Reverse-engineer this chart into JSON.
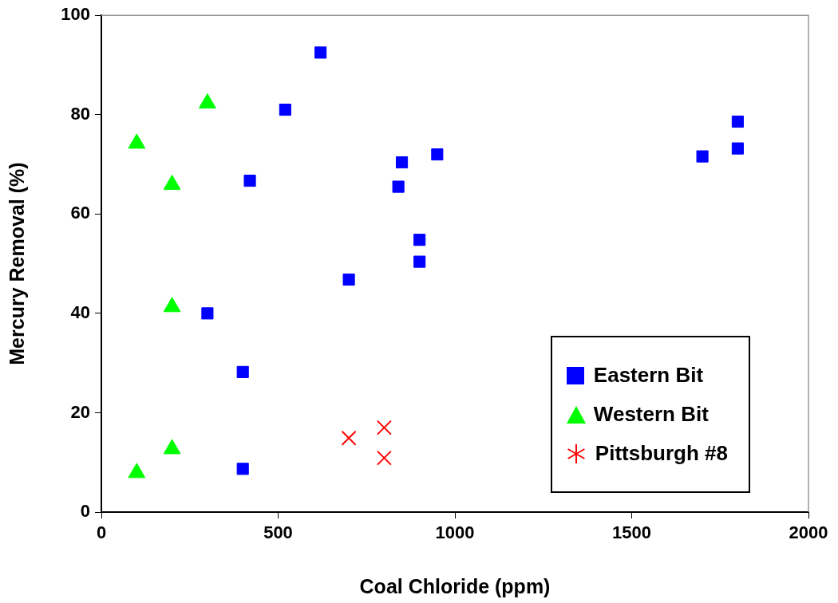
{
  "chart_data": {
    "type": "scatter",
    "xlabel": "Coal Chloride (ppm)",
    "ylabel": "Mercury Removal (%)",
    "xlim": [
      0,
      2000
    ],
    "xticks": [
      0,
      500,
      1000,
      1500,
      2000
    ],
    "ylim": [
      0,
      100
    ],
    "yticks": [
      0,
      20,
      40,
      60,
      80,
      100
    ],
    "grid": false,
    "legend": "bottom right",
    "series": [
      {
        "name": "Eastern Bit",
        "color": "#0000ff",
        "marker": "square",
        "x": [
          620,
          520,
          420,
          850,
          840,
          950,
          900,
          900,
          700,
          300,
          400,
          400,
          1700,
          1800,
          1800
        ],
        "values": [
          92.5,
          81,
          66.7,
          70.4,
          65.5,
          72,
          54.8,
          50.4,
          46.8,
          40,
          28.2,
          8.7,
          71.6,
          78.6,
          73.2
        ]
      },
      {
        "name": "Western Bit",
        "color": "#00ff00",
        "marker": "triangle",
        "x": [
          100,
          300,
          200,
          200,
          200,
          100
        ],
        "values": [
          74.2,
          82.3,
          65.9,
          41.3,
          12.7,
          7.9
        ]
      },
      {
        "name": "Pittsburgh #8",
        "color": "#ff0000",
        "marker": "cross",
        "x": [
          700,
          800,
          800
        ],
        "values": [
          14.9,
          17,
          10.9
        ]
      }
    ]
  }
}
